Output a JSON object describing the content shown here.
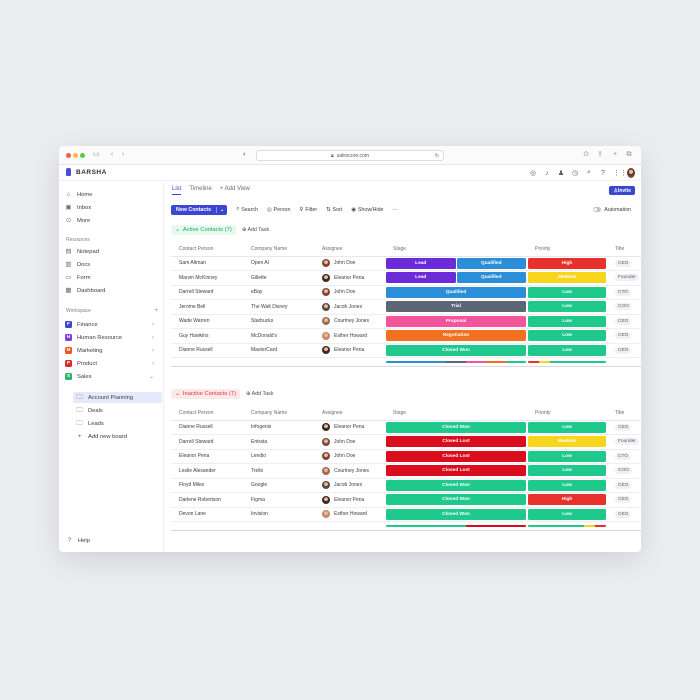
{
  "browser": {
    "url": "salescore.com"
  },
  "app": {
    "name": "BARSHA"
  },
  "sidebar": {
    "nav": [
      {
        "label": "Home",
        "icon": "home-icon"
      },
      {
        "label": "Inbox",
        "icon": "inbox-icon"
      },
      {
        "label": "More",
        "icon": "more-icon"
      }
    ],
    "resources_heading": "Resources",
    "resources": [
      {
        "label": "Notepad"
      },
      {
        "label": "Docs"
      },
      {
        "label": "Form"
      },
      {
        "label": "Dashboard"
      }
    ],
    "workspace_heading": "Workspace",
    "workspace_add": "+",
    "workspaces": [
      {
        "letter": "F",
        "label": "Finance",
        "color": "#3b46d1"
      },
      {
        "letter": "H",
        "label": "Human Resource",
        "color": "#7a3fe0"
      },
      {
        "letter": "M",
        "label": "Marketing",
        "color": "#f0571f"
      },
      {
        "letter": "P",
        "label": "Product",
        "color": "#d92d2d"
      },
      {
        "letter": "S",
        "label": "Sales",
        "color": "#27b86a"
      }
    ],
    "sales_children": [
      {
        "label": "Account Planning"
      },
      {
        "label": "Deals"
      },
      {
        "label": "Leads"
      }
    ],
    "add_board": "Add new board",
    "help": "Help"
  },
  "main": {
    "tabs": [
      {
        "label": "List"
      },
      {
        "label": "Timeline"
      },
      {
        "label": "+ Add View"
      }
    ],
    "invite": "Invite",
    "toolbar": {
      "new_task": "New Contacts",
      "search": "Search",
      "person": "Person",
      "filter": "Filter",
      "sort": "Sort",
      "show_hide": "Show/Hide",
      "more": "···",
      "automation": "Automation"
    },
    "columns": [
      "Contact Person",
      "Company Name",
      "Assignee",
      "Stage",
      "Priority",
      "Title",
      "Email"
    ],
    "add_task": "Add Task",
    "active": {
      "label": "Active Contacts (7)",
      "rows": [
        {
          "contact": "Sam Altman",
          "company": "Open AI",
          "assignee": "John Doe",
          "stage": [
            "Lead",
            "Qualified"
          ],
          "priority": "High",
          "title": "CEO",
          "email": "sam@openai.com"
        },
        {
          "contact": "Marvin McKinney",
          "company": "Gillette",
          "assignee": "Eleanor Pena",
          "stage": [
            "Lead",
            "Qualified"
          ],
          "priority": "Medium",
          "title": "Founder",
          "email": "support@pay"
        },
        {
          "contact": "Darrell Steward",
          "company": "eBay",
          "assignee": "John Doe",
          "stage": [
            "Qualified"
          ],
          "priority": "Low",
          "title": "CTO",
          "email": "rufus@gmail.com"
        },
        {
          "contact": "Jerome Bell",
          "company": "The Walt Disney",
          "assignee": "Jacob Jones",
          "stage": [
            "Trial"
          ],
          "priority": "Low",
          "title": "COO",
          "email": "zong@gmail.com"
        },
        {
          "contact": "Wade Warren",
          "company": "Starbucks",
          "assignee": "Courtney Jones",
          "stage": [
            "Proposal"
          ],
          "priority": "Low",
          "title": "CEO",
          "email": "info@lmb"
        },
        {
          "contact": "Guy Hawkins",
          "company": "McDonald's",
          "assignee": "Esther Howard",
          "stage": [
            "Negotiation"
          ],
          "priority": "Low",
          "title": "CEO",
          "email": "esper@gmail.com"
        },
        {
          "contact": "Dianne Russell",
          "company": "MasterCard",
          "assignee": "Eleanor Pena",
          "stage": [
            "Closed Won"
          ],
          "priority": "Low",
          "title": "CEO",
          "email": "exel@gmail.com"
        }
      ]
    },
    "inactive": {
      "label": "Inactive Contacts (7)",
      "rows": [
        {
          "contact": "Dianne Russell",
          "company": "Infogenix",
          "assignee": "Eleanor Pena",
          "stage": [
            "Closed Won"
          ],
          "priority": "Low",
          "title": "CEO",
          "email": "dr@infogenix.com"
        },
        {
          "contact": "Darrell Steward",
          "company": "Entrata",
          "assignee": "John Doe",
          "stage": [
            "Closed Lost"
          ],
          "priority": "Medium",
          "title": "Founder",
          "email": "darrell@entrata.com"
        },
        {
          "contact": "Eleanor Pena",
          "company": "Lendio",
          "assignee": "John Doe",
          "stage": [
            "Closed Lost"
          ],
          "priority": "Low",
          "title": "CTO",
          "email": "elanor@lendio.com"
        },
        {
          "contact": "Leslie Alexander",
          "company": "Trello",
          "assignee": "Courtney Jones",
          "stage": [
            "Closed Lost"
          ],
          "priority": "Low",
          "title": "COO",
          "email": "leslie@trello.com"
        },
        {
          "contact": "Floyd Miles",
          "company": "Google",
          "assignee": "Jacob Jones",
          "stage": [
            "Closed Won"
          ],
          "priority": "Low",
          "title": "CEO",
          "email": "floyd@google.com"
        },
        {
          "contact": "Darlene Robertson",
          "company": "Figma",
          "assignee": "Eleanor Pena",
          "stage": [
            "Closed Won"
          ],
          "priority": "High",
          "title": "CEO",
          "email": "darlene@figma.com"
        },
        {
          "contact": "Devon Lane",
          "company": "Invision",
          "assignee": "Esther Howard",
          "stage": [
            "Closed Won"
          ],
          "priority": "Low",
          "title": "CEO",
          "email": "devon@invision.com"
        }
      ]
    }
  },
  "colors": {
    "Lead": "#6c2bd9",
    "Qualified": "#2a8fd8",
    "Trial": "#5d6675",
    "Proposal": "#f2559c",
    "Negotiation": "#f27121",
    "Closed Won": "#1fc98b",
    "Closed Lost": "#d90d1e",
    "High": "#e8302c",
    "Medium": "#f7d51d",
    "Low": "#1fc98b",
    "accent": "#3b46d1"
  }
}
